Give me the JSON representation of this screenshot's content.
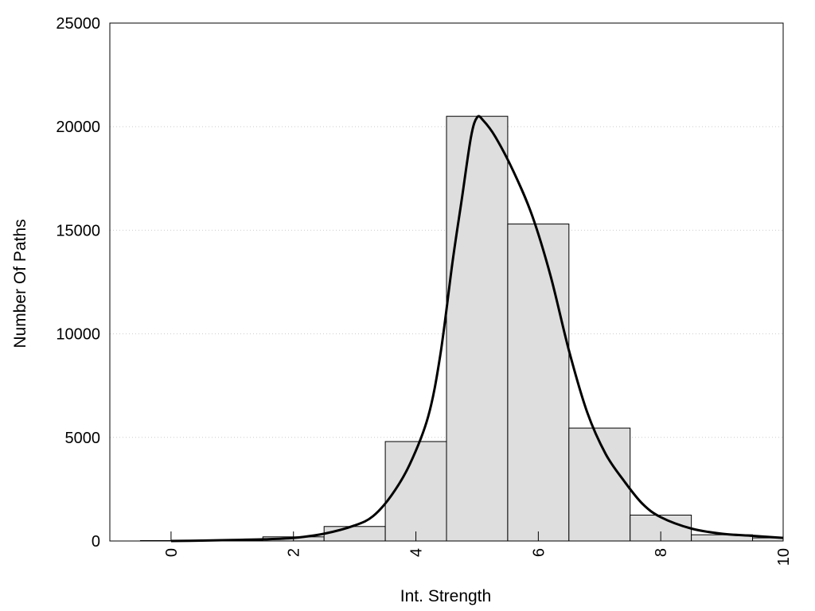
{
  "chart_data": {
    "type": "bar",
    "title": "",
    "xlabel": "Int. Strength",
    "ylabel": "Number Of Paths",
    "xlim": [
      -1,
      10
    ],
    "ylim": [
      0,
      25000
    ],
    "x_ticks": [
      0,
      2,
      4,
      6,
      8,
      10
    ],
    "y_ticks": [
      0,
      5000,
      10000,
      15000,
      20000,
      25000
    ],
    "grid": "horizontal dotted",
    "legend": "none",
    "bar_width": 1,
    "bars": [
      {
        "x": 0,
        "value": 20
      },
      {
        "x": 1,
        "value": 40
      },
      {
        "x": 2,
        "value": 200
      },
      {
        "x": 3,
        "value": 700
      },
      {
        "x": 4,
        "value": 4800
      },
      {
        "x": 5,
        "value": 20500
      },
      {
        "x": 6,
        "value": 15300
      },
      {
        "x": 7,
        "value": 5450
      },
      {
        "x": 8,
        "value": 1250
      },
      {
        "x": 9,
        "value": 300
      },
      {
        "x": 10,
        "value": 150
      }
    ],
    "density_curve": {
      "x": [
        0,
        0.5,
        1,
        1.5,
        2,
        2.5,
        3,
        3.3,
        3.6,
        3.9,
        4.2,
        4.4,
        4.6,
        4.75,
        4.9,
        5.0,
        5.1,
        5.3,
        5.6,
        5.9,
        6.2,
        6.5,
        6.8,
        7.1,
        7.4,
        7.7,
        8.0,
        8.5,
        9.0,
        9.5,
        10.0
      ],
      "y": [
        0,
        20,
        50,
        80,
        150,
        350,
        750,
        1200,
        2200,
        3700,
        6000,
        9000,
        13500,
        16500,
        19500,
        20450,
        20300,
        19500,
        17800,
        15700,
        12800,
        9200,
        6200,
        4200,
        2900,
        1800,
        1150,
        600,
        350,
        250,
        150
      ]
    },
    "colors": {
      "bar_fill": "#dedede",
      "bar_stroke": "#000000",
      "curve": "#000000",
      "grid": "#cccccc"
    }
  }
}
